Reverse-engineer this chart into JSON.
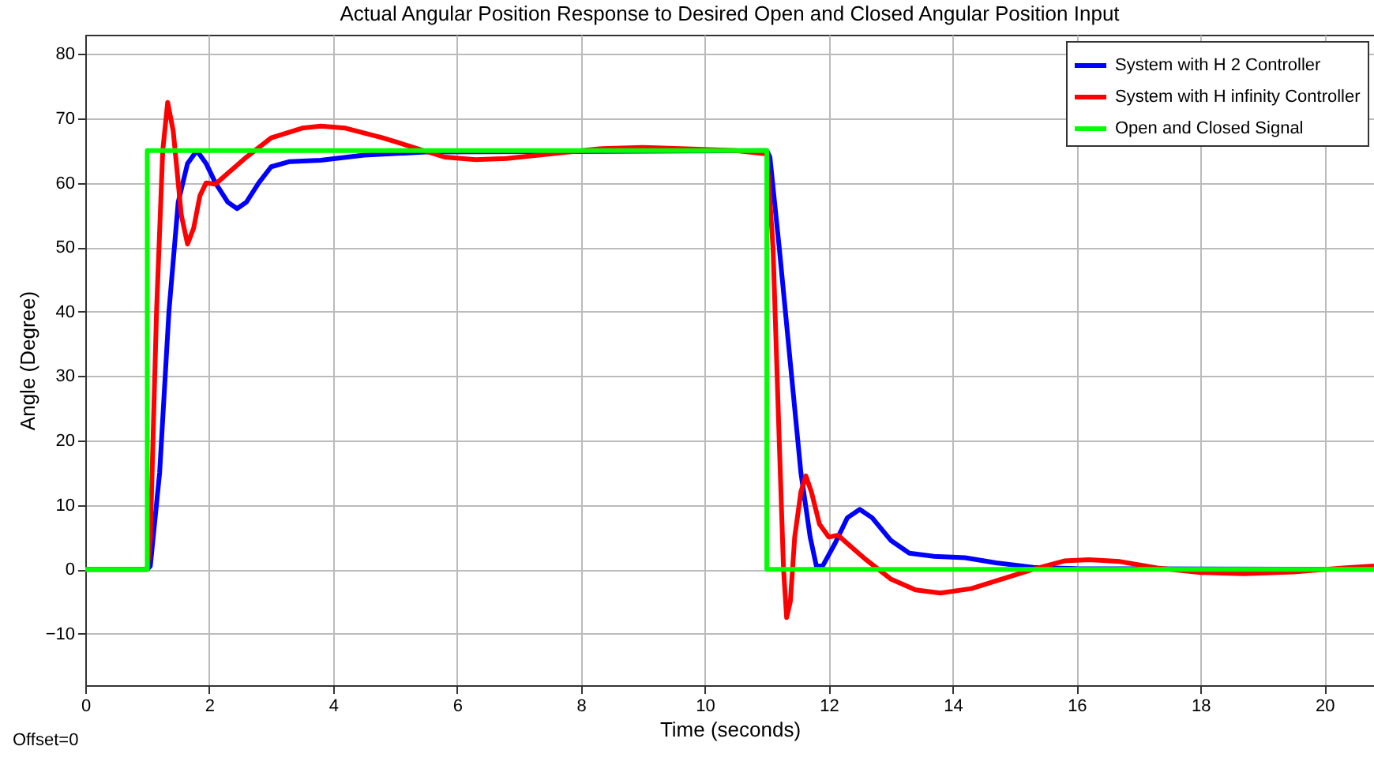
{
  "chart_data": {
    "type": "line",
    "title": "Actual Angular Position Response to Desired Open and Closed Angular Position Input",
    "xlabel": "Time (seconds)",
    "ylabel": "Angle (Degree)",
    "xlim": [
      0,
      20.8
    ],
    "ylim": [
      -18,
      83
    ],
    "xticks": [
      0,
      2,
      4,
      6,
      8,
      10,
      12,
      14,
      16,
      18,
      20
    ],
    "yticks": [
      -10,
      0,
      10,
      20,
      30,
      40,
      50,
      60,
      70,
      80
    ],
    "grid": true,
    "legend": "top right",
    "annotations": [
      "Offset=0"
    ],
    "series": [
      {
        "name": "System with H 2 Controller",
        "color": "#0000ff",
        "x": [
          0,
          1,
          1.05,
          1.2,
          1.35,
          1.5,
          1.65,
          1.8,
          1.95,
          2.1,
          2.3,
          2.45,
          2.6,
          2.8,
          3.0,
          3.3,
          3.8,
          4.5,
          5.5,
          11,
          11.05,
          11.2,
          11.4,
          11.55,
          11.7,
          11.8,
          11.9,
          12.1,
          12.3,
          12.5,
          12.7,
          13,
          13.3,
          13.7,
          14.2,
          14.7,
          15.3,
          16,
          20.8
        ],
        "values": [
          0,
          0,
          0.5,
          15,
          40,
          57,
          63,
          65,
          63,
          60,
          57,
          56,
          57,
          60,
          62.5,
          63.3,
          63.5,
          64.3,
          64.8,
          65,
          64,
          50,
          30,
          15,
          5,
          0.5,
          0.5,
          4,
          8,
          9.3,
          8,
          4.5,
          2.5,
          2,
          1.8,
          1,
          0.3,
          0.1,
          0
        ]
      },
      {
        "name": "System with H infinity Controller",
        "color": "#ff0000",
        "x": [
          0,
          1,
          1.05,
          1.15,
          1.25,
          1.33,
          1.42,
          1.55,
          1.65,
          1.75,
          1.85,
          1.95,
          2.1,
          2.3,
          2.6,
          3.0,
          3.5,
          3.8,
          4.2,
          4.8,
          5.3,
          5.8,
          6.3,
          6.8,
          7.5,
          8.3,
          9,
          9.7,
          10.5,
          11,
          11.1,
          11.2,
          11.27,
          11.32,
          11.38,
          11.45,
          11.55,
          11.63,
          11.72,
          11.85,
          12.0,
          12.15,
          12.3,
          12.6,
          13,
          13.4,
          13.8,
          14.3,
          14.8,
          15.3,
          15.8,
          16.2,
          16.7,
          17.3,
          18,
          18.7,
          19.5,
          20.3,
          20.8
        ],
        "values": [
          0,
          0,
          5,
          40,
          65,
          72.5,
          68,
          55,
          50.5,
          53,
          58,
          60,
          59.8,
          61.5,
          64,
          67,
          68.5,
          68.8,
          68.5,
          67,
          65.5,
          64,
          63.6,
          63.8,
          64.5,
          65.3,
          65.5,
          65.3,
          65,
          64.5,
          50,
          20,
          0,
          -7.5,
          -5,
          5,
          12,
          14.5,
          12,
          7,
          5,
          5.3,
          4,
          1.5,
          -1.5,
          -3.2,
          -3.7,
          -3,
          -1.5,
          0,
          1.3,
          1.5,
          1.2,
          0.2,
          -0.5,
          -0.7,
          -0.4,
          0.2,
          0.5
        ]
      },
      {
        "name": "Open and Closed Signal",
        "color": "#00ff00",
        "x": [
          0,
          1,
          1,
          11,
          11,
          20.8
        ],
        "values": [
          0,
          0,
          65,
          65,
          0,
          0
        ]
      }
    ]
  }
}
